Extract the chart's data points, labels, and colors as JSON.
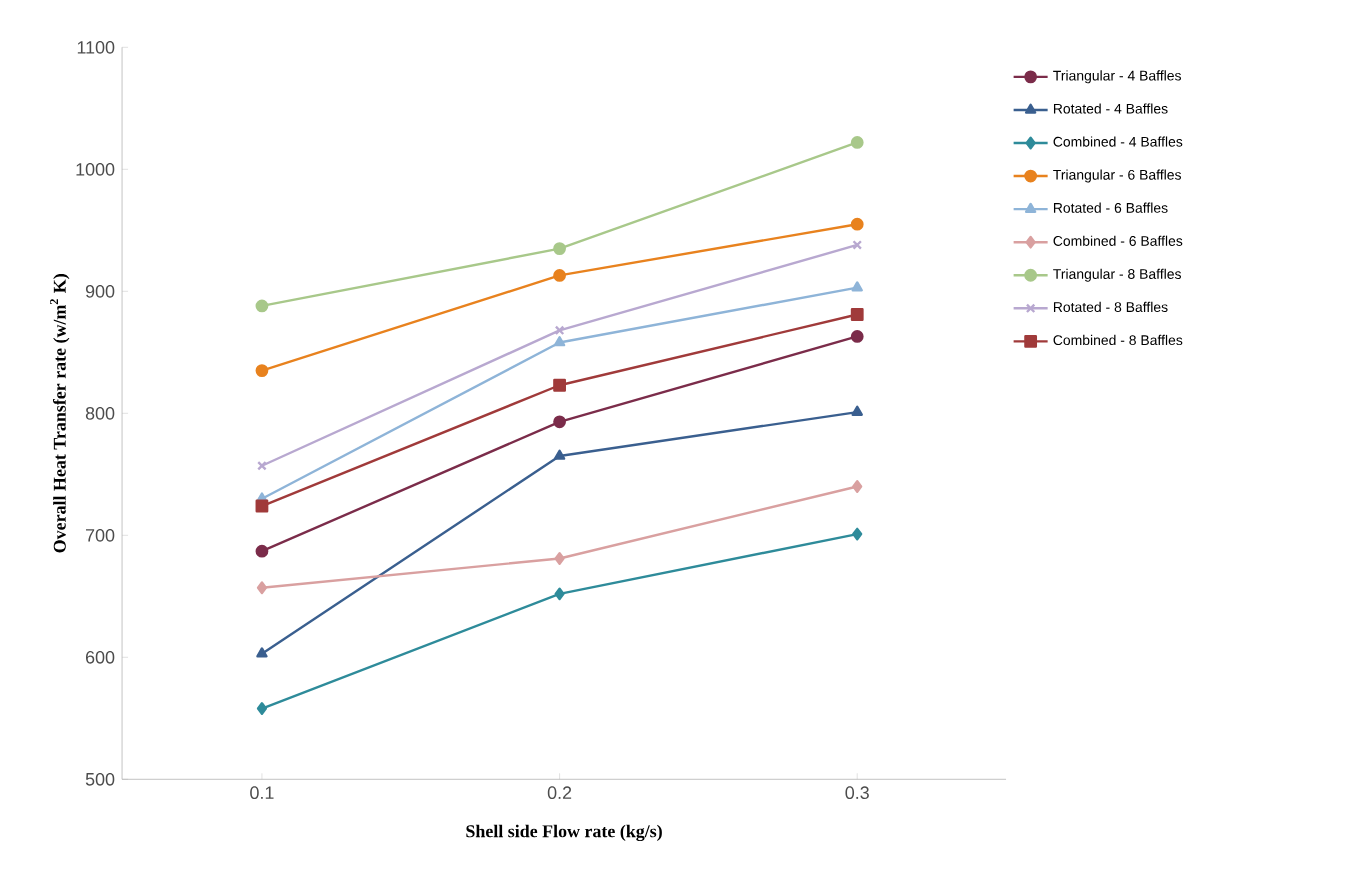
{
  "chart_data": {
    "type": "line",
    "xlabel": "Shell side  Flow rate (kg/s)",
    "ylabel": "Overall Heat Transfer rate (w/m$^{2}$ K)",
    "categories": [
      "0.1",
      "0.2",
      "0.3"
    ],
    "ylim": [
      500,
      1100
    ],
    "yticks": [
      500,
      600,
      700,
      800,
      900,
      1000,
      1100
    ],
    "grid": false,
    "legend": "right",
    "line_style": "solid",
    "series": [
      {
        "name": "Triangular - 4 Baffles",
        "color": "#7b2c4a",
        "marker": "circle",
        "values": [
          687,
          793,
          863
        ]
      },
      {
        "name": "Rotated - 4 Baffles",
        "color": "#3a5f8f",
        "marker": "triangle",
        "values": [
          603,
          765,
          801
        ]
      },
      {
        "name": "Combined - 4 Baffles",
        "color": "#2e8b9a",
        "marker": "diamond",
        "values": [
          558,
          652,
          701
        ]
      },
      {
        "name": "Triangular - 6 Baffles",
        "color": "#e8821e",
        "marker": "circle",
        "values": [
          835,
          913,
          955
        ]
      },
      {
        "name": "Rotated - 6 Baffles",
        "color": "#8eb4d8",
        "marker": "triangle",
        "values": [
          730,
          858,
          903
        ]
      },
      {
        "name": "Combined - 6 Baffles",
        "color": "#d9a0a0",
        "marker": "diamond",
        "values": [
          657,
          681,
          740
        ]
      },
      {
        "name": "Triangular - 8 Baffles",
        "color": "#a8c88a",
        "marker": "circle",
        "values": [
          888,
          935,
          1022
        ]
      },
      {
        "name": "Rotated - 8 Baffles",
        "color": "#b8a8d0",
        "marker": "cross",
        "values": [
          757,
          868,
          938
        ]
      },
      {
        "name": "Combined - 8 Baffles",
        "color": "#a03a3a",
        "marker": "square",
        "values": [
          724,
          823,
          881
        ]
      }
    ]
  }
}
